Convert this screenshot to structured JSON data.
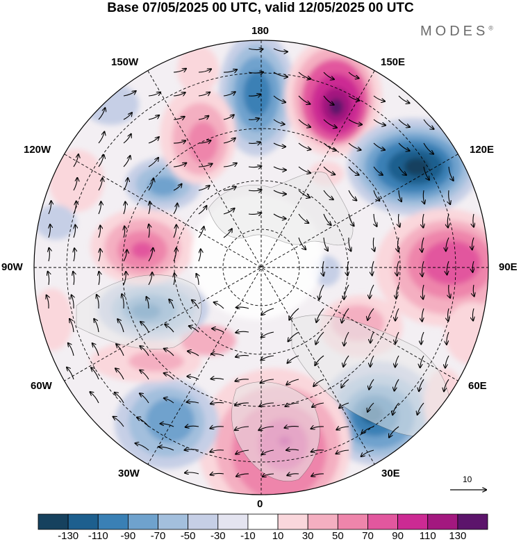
{
  "title": "Base 07/05/2025 00 UTC, valid 12/05/2025 00 UTC",
  "logo": "MODES",
  "logo_mark": "®",
  "longitude_labels": {
    "top": "180",
    "bottom": "0",
    "left": "90W",
    "right": "90E",
    "upper_left_1": "150W",
    "upper_left_2": "120W",
    "upper_right_1": "150E",
    "upper_right_2": "120E",
    "lower_left_1": "60W",
    "lower_left_2": "30W",
    "lower_right_1": "60E",
    "lower_right_2": "30E"
  },
  "reference_vector": {
    "label": "10",
    "value": 10
  },
  "colorbar": {
    "labels": [
      "-130",
      "-110",
      "-90",
      "-70",
      "-50",
      "-30",
      "-10",
      "10",
      "30",
      "50",
      "70",
      "90",
      "110",
      "130"
    ],
    "colors": [
      "#16415e",
      "#1d5f8e",
      "#3a80b5",
      "#6fa2cd",
      "#a3bfdd",
      "#c6cfe6",
      "#e4e4f0",
      "#ffffff",
      "#fad7dc",
      "#f4afc1",
      "#ee85ab",
      "#e2579e",
      "#cc2a93",
      "#a3187f",
      "#5c146b"
    ]
  },
  "anomaly_centers": [
    {
      "name": "center-near-180",
      "value": -90
    },
    {
      "name": "center-150E",
      "value": 110
    },
    {
      "name": "center-120E",
      "value": -130
    },
    {
      "name": "center-90E",
      "value": 90
    },
    {
      "name": "center-40E",
      "value": -110
    },
    {
      "name": "center-0",
      "value": 90
    },
    {
      "name": "center-40W",
      "value": -70
    },
    {
      "name": "center-70W",
      "value": -90
    },
    {
      "name": "center-95W",
      "value": 90
    },
    {
      "name": "center-120W",
      "value": -70
    },
    {
      "name": "center-150W",
      "value": 50
    },
    {
      "name": "center-60E",
      "value": 50
    }
  ]
}
